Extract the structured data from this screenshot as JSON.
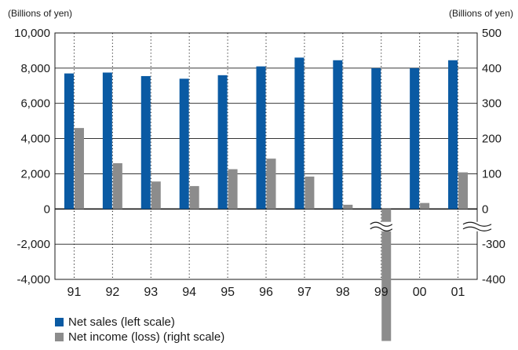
{
  "chart_data": {
    "type": "bar",
    "left_axis_unit": "(Billions of yen)",
    "right_axis_unit": "(Billions of yen)",
    "categories": [
      "91",
      "92",
      "93",
      "94",
      "95",
      "96",
      "97",
      "98",
      "99",
      "00",
      "01"
    ],
    "series": [
      {
        "name": "Net sales (left scale)",
        "axis": "left",
        "color": "#0a5aa3",
        "values": [
          7700,
          7750,
          7550,
          7400,
          7600,
          8100,
          8600,
          8450,
          8000,
          8000,
          8450
        ]
      },
      {
        "name": "Net income (loss) (right scale)",
        "axis": "right",
        "color": "#8c8c8c",
        "values": [
          230,
          130,
          78,
          65,
          113,
          143,
          92,
          12,
          -575,
          17,
          104
        ]
      }
    ],
    "left_axis": {
      "ylim": [
        -4000,
        10000
      ],
      "ticks": [
        "10,000",
        "8,000",
        "6,000",
        "4,000",
        "2,000",
        "0",
        "-2,000",
        "-4,000"
      ],
      "tick_values": [
        10000,
        8000,
        6000,
        4000,
        2000,
        0,
        -2000,
        -4000
      ]
    },
    "right_axis": {
      "ticks": [
        "500",
        "400",
        "300",
        "200",
        "100",
        "0",
        "-300",
        "-400"
      ],
      "tick_values": [
        500,
        400,
        300,
        200,
        100,
        0,
        -300,
        -400
      ],
      "broken": true
    },
    "grid": true,
    "legend_position": "bottom-left"
  }
}
